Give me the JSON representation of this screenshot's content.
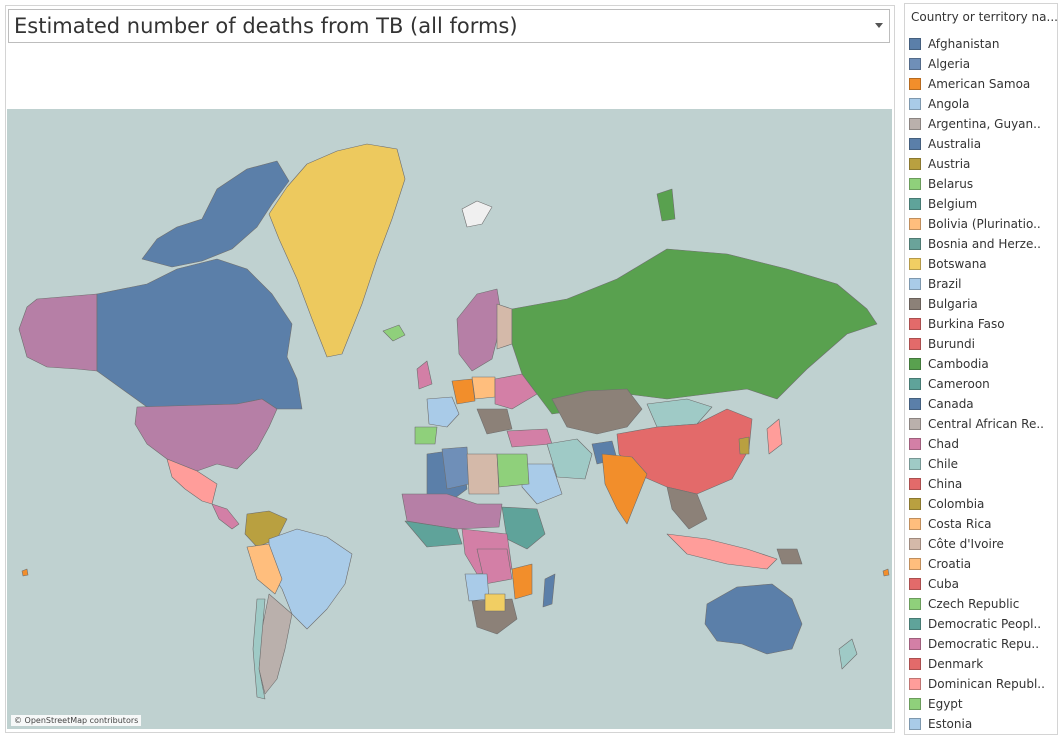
{
  "header": {
    "title": "Estimated number of deaths from TB (all forms)"
  },
  "map": {
    "credit": "© OpenStreetMap contributors",
    "ocean_color": "#bfd1d0"
  },
  "legend": {
    "title": "Country or territory na...",
    "items": [
      {
        "label": "Afghanistan",
        "color": "#5b7fa9"
      },
      {
        "label": "Algeria",
        "color": "#6f8fb8"
      },
      {
        "label": "American Samoa",
        "color": "#f28e2b"
      },
      {
        "label": "Angola",
        "color": "#a9cbe8"
      },
      {
        "label": "Argentina, Guyan..",
        "color": "#bab0ac"
      },
      {
        "label": "Australia",
        "color": "#5b7fa9"
      },
      {
        "label": "Austria",
        "color": "#b9a040"
      },
      {
        "label": "Belarus",
        "color": "#8fd07b"
      },
      {
        "label": "Belgium",
        "color": "#5fa39a"
      },
      {
        "label": "Bolivia (Plurinatio..",
        "color": "#ffbe7d"
      },
      {
        "label": "Bosnia and Herze..",
        "color": "#6aa39a"
      },
      {
        "label": "Botswana",
        "color": "#f1ce63"
      },
      {
        "label": "Brazil",
        "color": "#a9cbe8"
      },
      {
        "label": "Bulgaria",
        "color": "#8c8178"
      },
      {
        "label": "Burkina Faso",
        "color": "#e36a6a"
      },
      {
        "label": "Burundi",
        "color": "#e36a6a"
      },
      {
        "label": "Cambodia",
        "color": "#59a14f"
      },
      {
        "label": "Cameroon",
        "color": "#5fa39a"
      },
      {
        "label": "Canada",
        "color": "#5b7fa9"
      },
      {
        "label": "Central African Re..",
        "color": "#bab0ac"
      },
      {
        "label": "Chad",
        "color": "#d37fa6"
      },
      {
        "label": "Chile",
        "color": "#9fcac6"
      },
      {
        "label": "China",
        "color": "#e36a6a"
      },
      {
        "label": "Colombia",
        "color": "#b9a040"
      },
      {
        "label": "Costa Rica",
        "color": "#ffbe7d"
      },
      {
        "label": "Côte d'Ivoire",
        "color": "#d4b9a9"
      },
      {
        "label": "Croatia",
        "color": "#ffbe7d"
      },
      {
        "label": "Cuba",
        "color": "#e36a6a"
      },
      {
        "label": "Czech Republic",
        "color": "#8fd07b"
      },
      {
        "label": "Democratic Peopl..",
        "color": "#5fa39a"
      },
      {
        "label": "Democratic Repu..",
        "color": "#d37fa6"
      },
      {
        "label": "Denmark",
        "color": "#e36a6a"
      },
      {
        "label": "Dominican Republ..",
        "color": "#ff9d9a"
      },
      {
        "label": "Egypt",
        "color": "#8fd07b"
      },
      {
        "label": "Estonia",
        "color": "#a9cbe8"
      }
    ]
  }
}
